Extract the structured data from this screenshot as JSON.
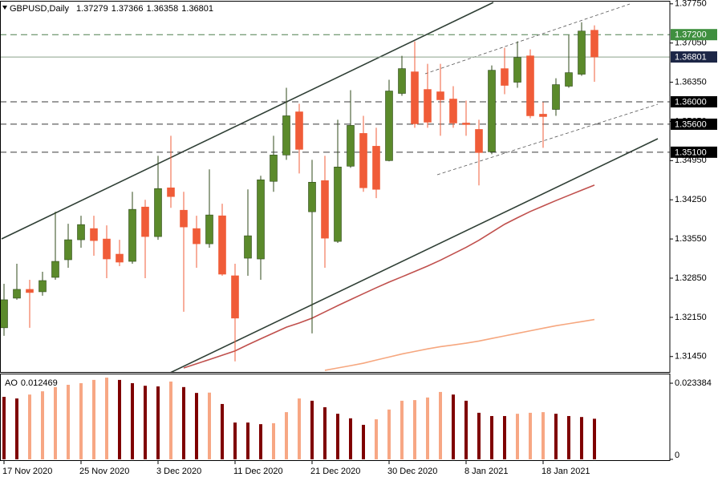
{
  "chart_data": [
    {
      "type": "candlestick",
      "title": "GBPUSD,Daily",
      "categories": [
        "17 Nov 2020",
        null,
        null,
        null,
        null,
        null,
        "25 Nov 2020",
        null,
        null,
        null,
        null,
        null,
        "3 Dec 2020",
        null,
        null,
        null,
        null,
        null,
        "11 Dec 2020",
        null,
        null,
        null,
        null,
        null,
        "21 Dec 2020",
        null,
        null,
        null,
        null,
        null,
        "30 Dec 2020",
        null,
        null,
        null,
        null,
        null,
        "8 Jan 2021",
        null,
        null,
        null,
        null,
        null,
        "18 Jan 2021",
        null,
        null,
        null,
        null
      ],
      "open": [
        1.31964,
        1.32493,
        1.3265,
        1.32607,
        1.32864,
        1.33179,
        1.33536,
        1.33736,
        1.3355,
        1.33279,
        1.3315,
        1.34121,
        1.33593,
        1.34464,
        1.34064,
        1.33736,
        1.33464,
        1.33964,
        1.32893,
        1.33207,
        1.33193,
        1.34579,
        1.3505,
        1.35821,
        1.34036,
        1.34593,
        1.33507,
        1.3485,
        1.35436,
        1.35207,
        1.3495,
        1.3615,
        1.36536,
        1.36221,
        1.36179,
        1.3605,
        1.35621,
        1.35507,
        1.35107,
        1.36593,
        1.3635,
        1.36821,
        1.35779,
        1.35864,
        1.36279,
        1.36493,
        1.37279
      ],
      "high": [
        1.3275,
        1.33107,
        1.32821,
        1.32964,
        1.34036,
        1.33821,
        1.33964,
        1.33964,
        1.33793,
        1.33536,
        1.34393,
        1.3425,
        1.35036,
        1.35393,
        1.34393,
        1.33964,
        1.34793,
        1.34179,
        1.33107,
        1.34436,
        1.34679,
        1.35393,
        1.3625,
        1.35964,
        1.34964,
        1.35036,
        1.35679,
        1.36207,
        1.3575,
        1.35536,
        1.36393,
        1.36821,
        1.37079,
        1.36679,
        1.36679,
        1.36279,
        1.36021,
        1.35679,
        1.3665,
        1.36964,
        1.37079,
        1.36936,
        1.35993,
        1.36421,
        1.37193,
        1.37421,
        1.37366
      ],
      "low": [
        1.31821,
        1.32464,
        1.31964,
        1.32536,
        1.32821,
        1.33036,
        1.33393,
        1.3325,
        1.3285,
        1.33064,
        1.33107,
        1.3285,
        1.33536,
        1.34107,
        1.3225,
        1.33036,
        1.33393,
        1.32893,
        1.31364,
        1.32893,
        1.32821,
        1.34393,
        1.34964,
        1.34721,
        1.31864,
        1.33036,
        1.33479,
        1.34821,
        1.34393,
        1.34279,
        1.34936,
        1.36107,
        1.35536,
        1.35536,
        1.35393,
        1.35536,
        1.35393,
        1.34507,
        1.35064,
        1.36136,
        1.3625,
        1.35707,
        1.35179,
        1.3575,
        1.3625,
        1.36464,
        1.36358
      ],
      "close": [
        1.32464,
        1.3265,
        1.32593,
        1.32807,
        1.3315,
        1.33536,
        1.33807,
        1.33521,
        1.33193,
        1.33136,
        1.34079,
        1.33593,
        1.3445,
        1.34307,
        1.33764,
        1.33464,
        1.33979,
        1.32921,
        1.32136,
        1.33607,
        1.34607,
        1.3505,
        1.3575,
        1.3515,
        1.34564,
        1.33564,
        1.34836,
        1.35579,
        1.34464,
        1.34436,
        1.36193,
        1.36593,
        1.35607,
        1.35636,
        1.36036,
        1.35621,
        1.35593,
        1.35093,
        1.36564,
        1.36293,
        1.36793,
        1.3575,
        1.35736,
        1.36307,
        1.36521,
        1.37264,
        1.36801
      ],
      "up_color": "#5b8a2b",
      "down_color": "#f05c38",
      "ylim": [
        1.3116,
        1.3779
      ],
      "yticks": [
        {
          "value": 1.3775,
          "label": "1.37750"
        },
        {
          "value": 1.3705,
          "label": "1.37050"
        },
        {
          "value": 1.3635,
          "label": "1.36350"
        },
        {
          "value": 1.3565,
          "label": "1.35650"
        },
        {
          "value": 1.3495,
          "label": "1.34950"
        },
        {
          "value": 1.3425,
          "label": "1.34250"
        },
        {
          "value": 1.3355,
          "label": "1.33550"
        },
        {
          "value": 1.3285,
          "label": "1.32850"
        },
        {
          "value": 1.3215,
          "label": "1.32150"
        },
        {
          "value": 1.3145,
          "label": "1.31450"
        }
      ],
      "levels": [
        {
          "value": 1.372,
          "label": "1.37200",
          "color": "#3f8f3f",
          "dashed": true
        },
        {
          "value": 1.36801,
          "label": "1.36801",
          "color": "#1c2646",
          "dashed": false
        },
        {
          "value": 1.36,
          "label": "1.36000",
          "color": "#000000",
          "dashed": true
        },
        {
          "value": 1.356,
          "label": "1.35600",
          "color": "#000000",
          "dashed": true
        },
        {
          "value": 1.351,
          "label": "1.35100",
          "color": "#000000",
          "dashed": true
        }
      ],
      "moving_averages": [
        {
          "color": "#c0504d",
          "values": [
            null,
            null,
            null,
            null,
            null,
            null,
            null,
            null,
            null,
            null,
            null,
            null,
            null,
            null,
            1.31246,
            1.31321,
            1.31397,
            1.31474,
            1.3155,
            1.31661,
            1.31767,
            1.31871,
            1.31974,
            1.3205,
            1.32136,
            1.32247,
            1.32359,
            1.32467,
            1.32573,
            1.32679,
            1.3278,
            1.32874,
            1.3297,
            1.33066,
            1.33171,
            1.33286,
            1.334,
            1.33527,
            1.3367,
            1.33813,
            1.33929,
            1.34041,
            1.34139,
            1.34236,
            1.34329,
            1.34421,
            1.34513
          ]
        },
        {
          "color": "#f6a77f",
          "values": [
            null,
            null,
            null,
            null,
            null,
            null,
            null,
            null,
            null,
            null,
            null,
            null,
            null,
            null,
            null,
            null,
            null,
            null,
            null,
            null,
            null,
            null,
            null,
            null,
            null,
            1.31204,
            1.31246,
            1.31287,
            1.31331,
            1.31387,
            1.31441,
            1.31496,
            1.31541,
            1.31587,
            1.31626,
            1.31657,
            1.31689,
            1.31727,
            1.31773,
            1.31819,
            1.31864,
            1.3191,
            1.31956,
            1.32,
            1.32037,
            1.32074,
            1.32111
          ]
        }
      ]
    },
    {
      "type": "histogram_oscillator",
      "title": "AO",
      "values": [
        0.0192,
        0.0187,
        0.0199,
        0.0209,
        0.0222,
        0.0229,
        0.0234,
        0.0244,
        0.0251,
        0.0244,
        0.0234,
        0.0226,
        0.0224,
        0.0239,
        0.0222,
        0.0204,
        0.0205,
        0.017,
        0.0113,
        0.0113,
        0.0108,
        0.0111,
        0.0145,
        0.0187,
        0.018,
        0.016,
        0.014,
        0.0126,
        0.0106,
        0.0123,
        0.0153,
        0.018,
        0.0182,
        0.019,
        0.0207,
        0.0199,
        0.018,
        0.0143,
        0.0133,
        0.0133,
        0.014,
        0.0143,
        0.0145,
        0.014,
        0.0133,
        0.013,
        0.012469
      ],
      "up_color": "#f7a784",
      "down_color": "#7f0000",
      "ylim": [
        -0.0005,
        0.0261
      ],
      "yticks": [
        0.023384,
        0
      ]
    }
  ]
}
